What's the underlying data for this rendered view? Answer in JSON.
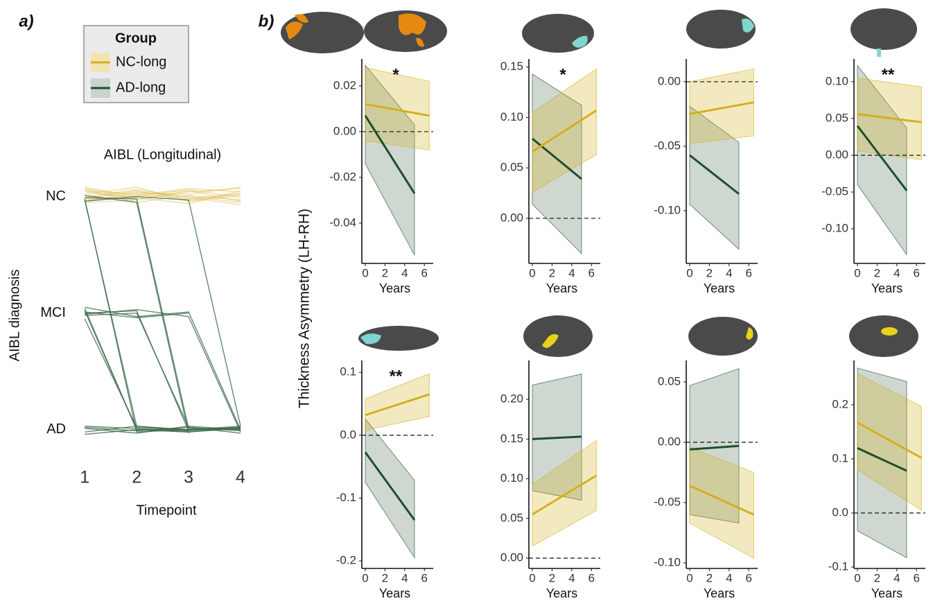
{
  "chart_data": [
    {
      "type": "spaghetti",
      "panel_label": "a)",
      "title": "AIBL (Longitudinal)",
      "xlabel": "Timepoint",
      "ylabel": "AIBL diagnosis",
      "x": [
        1,
        2,
        3,
        4
      ],
      "xlim": [
        0.85,
        4.2
      ],
      "xticks": [
        1,
        2,
        3,
        4
      ],
      "ylim": [
        0.88,
        3.17
      ],
      "yticks": [
        {
          "value": 1,
          "label": "AD"
        },
        {
          "value": 2,
          "label": "MCI"
        },
        {
          "value": 3,
          "label": "NC"
        }
      ],
      "series": [
        {
          "color": "#e0c05a",
          "lines": [
            [
              3.05,
              3.02,
              2.98,
              3.03
            ],
            [
              2.98,
              3.04,
              3.0,
              2.95
            ],
            [
              3.08,
              3.0,
              3.06,
              2.99
            ],
            [
              2.95,
              2.97,
              3.04,
              3.07
            ],
            [
              3.02,
              3.08,
              2.96,
              3.01
            ],
            [
              3.06,
              2.95,
              3.01,
              2.97
            ],
            [
              2.97,
              3.01,
              3.07,
              3.04
            ],
            [
              3.0,
              3.06,
              2.99,
              2.93
            ],
            [
              3.04,
              2.99,
              2.94,
              3.05
            ],
            [
              2.96,
              3.03,
              3.02,
              3.08
            ],
            [
              3.07,
              2.98,
              3.05,
              2.96
            ],
            [
              2.99,
              3.05,
              2.97,
              3.02
            ]
          ]
        },
        {
          "color": "#3f6b4c",
          "lines": [
            [
              2.98,
              0.98,
              1.0,
              1.02
            ],
            [
              2.97,
              1.03,
              0.99,
              null
            ],
            [
              2.99,
              2.98,
              1.01,
              1.0
            ],
            [
              3.01,
              2.95,
              0.97,
              null
            ],
            [
              2.96,
              3.0,
              2.97,
              1.03
            ],
            [
              2.02,
              1.0,
              0.98,
              1.01
            ],
            [
              1.98,
              2.0,
              1.02,
              0.99
            ],
            [
              2.05,
              1.97,
              2.01,
              1.0
            ],
            [
              2.0,
              2.02,
              0.99,
              null
            ],
            [
              1.95,
              1.02,
              1.0,
              null
            ],
            [
              1.03,
              1.01,
              0.99,
              1.02
            ],
            [
              0.98,
              1.03,
              1.0,
              1.01
            ],
            [
              1.01,
              0.97,
              1.03,
              1.0
            ],
            [
              2.04,
              1.0,
              1.0,
              1.03
            ],
            [
              1.99,
              2.03,
              1.97,
              0.98
            ],
            [
              1.02,
              0.99,
              1.02,
              0.97
            ],
            [
              2.01,
              1.96,
              2.0,
              null
            ],
            [
              0.96,
              1.0,
              0.98,
              1.02
            ]
          ]
        }
      ]
    },
    {
      "type": "ribbon",
      "panel_label": "b)",
      "ylabel": "Thickness Asymmetry (LH-RH)",
      "legend_title": "Group",
      "xlabel": "Years",
      "annotation": "*",
      "xlim": [
        -0.35,
        6.9
      ],
      "xticks": [
        0,
        2,
        4,
        6
      ],
      "ylim": [
        -0.0576,
        0.0318
      ],
      "yticks": [
        0.02,
        {
          "value": 0,
          "label": "0.00"
        },
        -0.02,
        -0.04
      ],
      "hline": 0,
      "series": [
        {
          "name": "AD-long",
          "color": "#1e4d2b",
          "x": [
            0,
            5
          ],
          "values": [
            0.007,
            -0.027
          ],
          "lower": [
            -0.014,
            -0.054
          ],
          "upper": [
            0.029,
            0.003
          ]
        },
        {
          "name": "NC-long",
          "color": "#d4af1e",
          "x": [
            0,
            6.5
          ],
          "values": [
            0.012,
            0.007
          ],
          "lower": [
            -0.004,
            -0.008
          ],
          "upper": [
            0.028,
            0.022
          ]
        }
      ]
    },
    {
      "type": "ribbon",
      "xlabel": "Years",
      "annotation": "*",
      "xlim": [
        -0.35,
        6.9
      ],
      "xticks": [
        0,
        2,
        4,
        6
      ],
      "ylim": [
        -0.0447,
        0.158
      ],
      "yticks": [
        0.15,
        {
          "value": 0.1,
          "label": "0.10"
        },
        0.05,
        {
          "value": 0,
          "label": "0.00"
        }
      ],
      "hline": 0,
      "series": [
        {
          "color": "#1e4d2b",
          "x": [
            0,
            5
          ],
          "values": [
            0.079,
            0.039
          ],
          "lower": [
            0.014,
            -0.035
          ],
          "upper": [
            0.143,
            0.112
          ]
        },
        {
          "color": "#d4af1e",
          "x": [
            0,
            6.5
          ],
          "values": [
            0.066,
            0.107
          ],
          "lower": [
            0.026,
            0.063
          ],
          "upper": [
            0.105,
            0.148
          ]
        }
      ]
    },
    {
      "type": "ribbon",
      "xlabel": "Years",
      "xlim": [
        -0.35,
        6.9
      ],
      "xticks": [
        0,
        2,
        4,
        6
      ],
      "ylim": [
        -0.1409,
        0.0177
      ],
      "yticks": [
        {
          "value": 0,
          "label": "0.00"
        },
        -0.05,
        {
          "value": -0.1,
          "label": "-0.10"
        }
      ],
      "hline": 0,
      "series": [
        {
          "color": "#1e4d2b",
          "x": [
            0,
            5
          ],
          "values": [
            -0.057,
            -0.087
          ],
          "lower": [
            -0.095,
            -0.13
          ],
          "upper": [
            -0.019,
            -0.047
          ]
        },
        {
          "color": "#d4af1e",
          "x": [
            0,
            6.5
          ],
          "values": [
            -0.025,
            -0.016
          ],
          "lower": [
            -0.048,
            -0.042
          ],
          "upper": [
            0.0,
            0.01
          ]
        }
      ]
    },
    {
      "type": "ribbon",
      "xlabel": "Years",
      "annotation": "**",
      "xlim": [
        -0.35,
        6.9
      ],
      "xticks": [
        0,
        2,
        4,
        6
      ],
      "ylim": [
        -0.147,
        0.131
      ],
      "yticks": [
        {
          "value": 0.1,
          "label": "0.10"
        },
        0.05,
        {
          "value": 0,
          "label": "0.00"
        },
        -0.05,
        {
          "value": -0.1,
          "label": "-0.10"
        }
      ],
      "hline": 0,
      "series": [
        {
          "color": "#1e4d2b",
          "x": [
            0,
            5
          ],
          "values": [
            0.04,
            -0.048
          ],
          "lower": [
            -0.04,
            -0.135
          ],
          "upper": [
            0.122,
            0.037
          ]
        },
        {
          "color": "#d4af1e",
          "x": [
            0,
            6.5
          ],
          "values": [
            0.056,
            0.045
          ],
          "lower": [
            0.006,
            -0.006
          ],
          "upper": [
            0.105,
            0.093
          ]
        }
      ]
    },
    {
      "type": "ribbon",
      "xlabel": "Years",
      "annotation": "**",
      "xlim": [
        -0.35,
        6.9
      ],
      "xticks": [
        0,
        2,
        4,
        6
      ],
      "ylim": [
        -0.212,
        0.119
      ],
      "yticks": [
        0.1,
        {
          "value": 0,
          "label": "0.0"
        },
        -0.1,
        -0.2
      ],
      "hline": 0,
      "series": [
        {
          "color": "#1e4d2b",
          "x": [
            0,
            5
          ],
          "values": [
            -0.027,
            -0.135
          ],
          "lower": [
            -0.075,
            -0.195
          ],
          "upper": [
            0.026,
            -0.072
          ]
        },
        {
          "color": "#d4af1e",
          "x": [
            0,
            6.5
          ],
          "values": [
            0.032,
            0.065
          ],
          "lower": [
            0.008,
            0.03
          ],
          "upper": [
            0.058,
            0.098
          ]
        }
      ]
    },
    {
      "type": "ribbon",
      "xlabel": "Years",
      "xlim": [
        -0.35,
        6.9
      ],
      "xticks": [
        0,
        2,
        4,
        6
      ],
      "ylim": [
        -0.013,
        0.249
      ],
      "yticks": [
        {
          "value": 0.2,
          "label": "0.20"
        },
        0.15,
        {
          "value": 0.1,
          "label": "0.10"
        },
        0.05,
        {
          "value": 0,
          "label": "0.00"
        }
      ],
      "hline": 0,
      "series": [
        {
          "color": "#1e4d2b",
          "x": [
            0,
            5
          ],
          "values": [
            0.15,
            0.153
          ],
          "lower": [
            0.085,
            0.073
          ],
          "upper": [
            0.218,
            0.232
          ]
        },
        {
          "color": "#d4af1e",
          "x": [
            0,
            6.5
          ],
          "values": [
            0.055,
            0.104
          ],
          "lower": [
            0.015,
            0.06
          ],
          "upper": [
            0.093,
            0.148
          ]
        }
      ]
    },
    {
      "type": "ribbon",
      "xlabel": "Years",
      "xlim": [
        -0.35,
        6.9
      ],
      "xticks": [
        0,
        2,
        4,
        6
      ],
      "ylim": [
        -0.1046,
        0.0678
      ],
      "yticks": [
        0.05,
        {
          "value": 0,
          "label": "0.00"
        },
        -0.05,
        {
          "value": -0.1,
          "label": "-0.10"
        }
      ],
      "hline": 0,
      "series": [
        {
          "color": "#1e4d2b",
          "x": [
            0,
            5
          ],
          "values": [
            -0.006,
            -0.003
          ],
          "lower": [
            -0.06,
            -0.067
          ],
          "upper": [
            0.047,
            0.061
          ]
        },
        {
          "color": "#d4af1e",
          "x": [
            0,
            6.5
          ],
          "values": [
            -0.036,
            -0.06
          ],
          "lower": [
            -0.067,
            -0.096
          ],
          "upper": [
            -0.004,
            -0.025
          ]
        }
      ]
    },
    {
      "type": "ribbon",
      "xlabel": "Years",
      "xlim": [
        -0.35,
        6.9
      ],
      "xticks": [
        0,
        2,
        4,
        6
      ],
      "ylim": [
        -0.1026,
        0.282
      ],
      "yticks": [
        0.2,
        0.1,
        {
          "value": 0,
          "label": "0.0"
        },
        -0.1
      ],
      "hline": 0,
      "series": [
        {
          "color": "#1e4d2b",
          "x": [
            0,
            5
          ],
          "values": [
            0.12,
            0.078
          ],
          "lower": [
            -0.033,
            -0.083
          ],
          "upper": [
            0.268,
            0.243
          ]
        },
        {
          "color": "#d4af1e",
          "x": [
            0,
            6.5
          ],
          "values": [
            0.167,
            0.102
          ],
          "lower": [
            0.08,
            0.005
          ],
          "upper": [
            0.258,
            0.197
          ]
        }
      ]
    }
  ]
}
